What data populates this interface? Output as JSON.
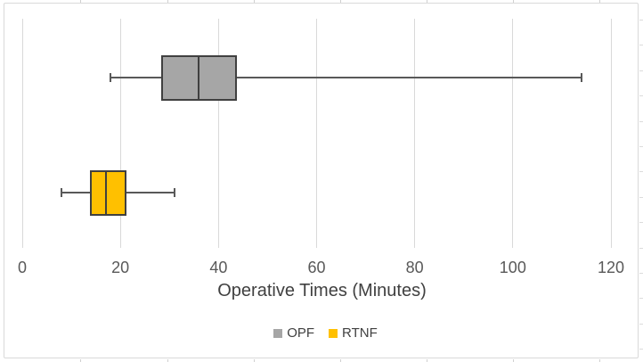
{
  "chart_data": {
    "type": "boxplot",
    "orientation": "horizontal",
    "title": "",
    "xlabel": "Operative Times (Minutes)",
    "ylabel": "",
    "xlim": [
      0,
      120
    ],
    "xticks": [
      0,
      20,
      40,
      60,
      80,
      100,
      120
    ],
    "grid": "vertical-gridlines-on",
    "legend_position": "bottom-center",
    "series": [
      {
        "name": "OPF",
        "color": "#a6a6a6",
        "whisker_low": 18,
        "q1": 28.5,
        "median": 36,
        "q3": 43.5,
        "whisker_high": 114
      },
      {
        "name": "RTNF",
        "color": "#ffc000",
        "whisker_low": 8,
        "q1": 14,
        "median": 17,
        "q3": 21,
        "whisker_high": 31
      }
    ]
  },
  "legend": {
    "items": [
      {
        "label": "OPF",
        "swatch_color": "#a6a6a6"
      },
      {
        "label": "RTNF",
        "swatch_color": "#ffc000"
      }
    ]
  },
  "colors": {
    "background": "#ffffff",
    "chart_border": "#d9d9d9",
    "gridline": "#d9d9d9",
    "box_outline": "#404040",
    "whisker": "#595959",
    "tick_label_text": "#595959",
    "axis_title_text": "#404040",
    "legend_text": "#404040"
  }
}
